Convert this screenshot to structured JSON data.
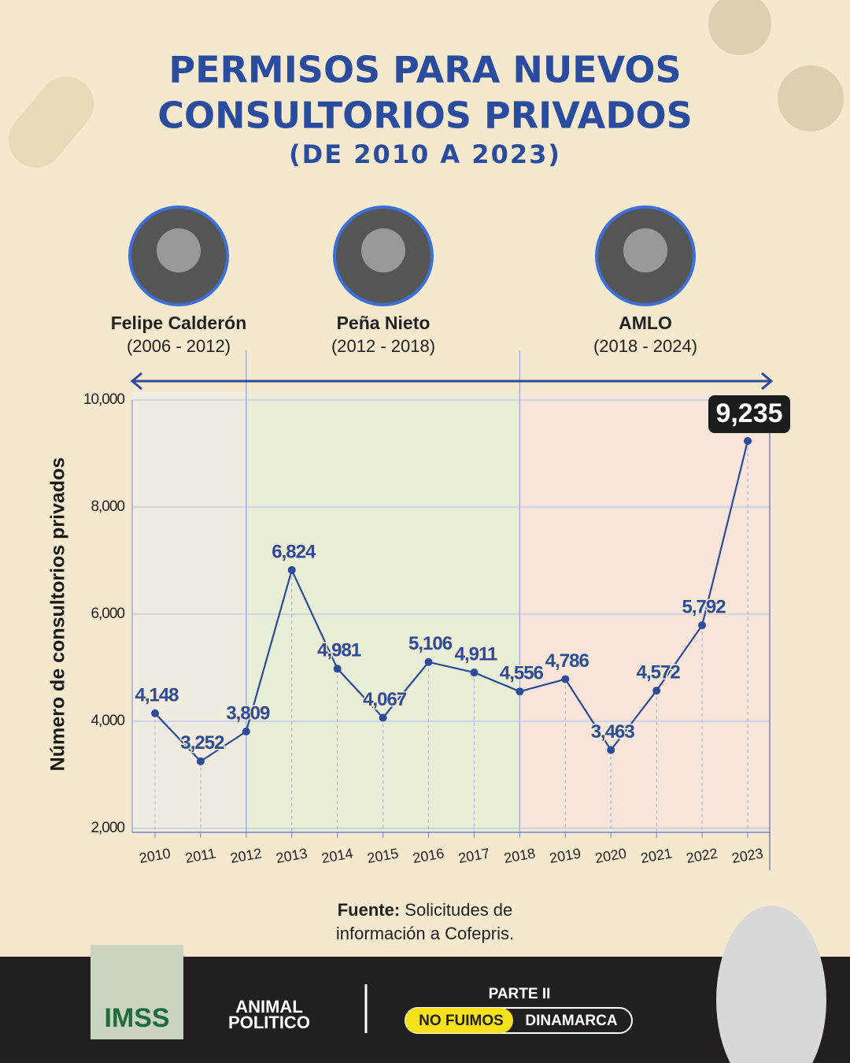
{
  "header": {
    "title_lines": [
      "PERMISOS PARA NUEVOS",
      "CONSULTORIOS PRIVADOS"
    ],
    "subtitle": "(DE 2010 A 2023)"
  },
  "presidents": [
    {
      "name": "Felipe Calderón",
      "term": "(2006 - 2012)"
    },
    {
      "name": "Peña Nieto",
      "term": "(2012 - 2018)"
    },
    {
      "name": "AMLO",
      "term": "(2018 - 2024)"
    }
  ],
  "chart_data": {
    "type": "line",
    "categories": [
      "2010",
      "2011",
      "2012",
      "2013",
      "2014",
      "2015",
      "2016",
      "2017",
      "2018",
      "2019",
      "2020",
      "2021",
      "2022",
      "2023"
    ],
    "values": [
      4148,
      3252,
      3809,
      6824,
      4981,
      4067,
      5106,
      4911,
      4556,
      4786,
      3463,
      4572,
      5792,
      9235
    ],
    "value_labels": [
      "4,148",
      "3,252",
      "3,809",
      "6,824",
      "4,981",
      "4,067",
      "5,106",
      "4,911",
      "4,556",
      "4,786",
      "3,463",
      "4,572",
      "5,792",
      "9,235"
    ],
    "color": "#2b4b9b",
    "ylabel": "Número de consultorios privados",
    "ylim": [
      2000,
      10000
    ],
    "yticks": [
      {
        "value": 2000,
        "label": "2,000"
      },
      {
        "value": 4000,
        "label": "4,000"
      },
      {
        "value": 6000,
        "label": "6,000"
      },
      {
        "value": 8000,
        "label": "8,000"
      },
      {
        "value": 10000,
        "label": "10,000"
      }
    ],
    "grid": true
  },
  "source": {
    "label": "Fuente:",
    "lines": [
      "Solicitudes de",
      "información a Cofepris."
    ]
  },
  "footer": {
    "logo": "IMSS",
    "brand_lines": [
      "ANIMAL",
      "POLITICO"
    ],
    "part": "PARTE II",
    "tag": [
      "NO FUIMOS",
      "DINAMARCA"
    ]
  }
}
